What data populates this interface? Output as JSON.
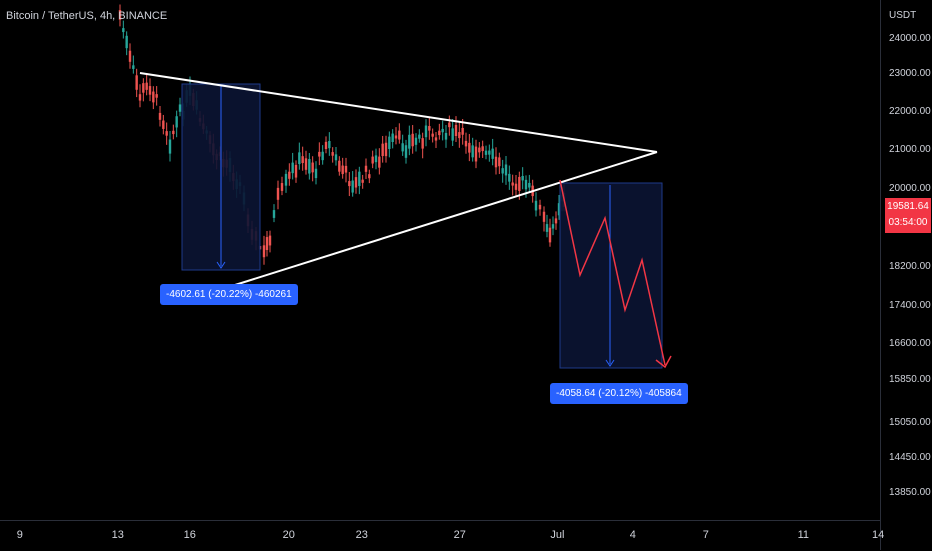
{
  "symbol": {
    "title": "Bitcoin / TetherUS, 4h, BINANCE"
  },
  "price_axis": {
    "currency": "USDT",
    "ticks": [
      {
        "label": "24000.00",
        "value": 24000
      },
      {
        "label": "23000.00",
        "value": 23000
      },
      {
        "label": "22000.00",
        "value": 22000
      },
      {
        "label": "21000.00",
        "value": 21000
      },
      {
        "label": "20000.00",
        "value": 20000
      },
      {
        "label": "18200.00",
        "value": 18200
      },
      {
        "label": "17400.00",
        "value": 17400
      },
      {
        "label": "16600.00",
        "value": 16600
      },
      {
        "label": "15850.00",
        "value": 15850
      },
      {
        "label": "15050.00",
        "value": 15050
      },
      {
        "label": "14450.00",
        "value": 14450
      },
      {
        "label": "13850.00",
        "value": 13850
      }
    ],
    "current_price": "19581.64",
    "countdown": "03:54:00",
    "current_color": "#f23645"
  },
  "time_axis": {
    "ticks": [
      "9",
      "13",
      "16",
      "20",
      "23",
      "27",
      "Jul",
      "4",
      "7",
      "11",
      "14"
    ]
  },
  "measurements": [
    {
      "label": "-4602.61 (-20.22%) -460261"
    },
    {
      "label": "-4058.64 (-20.12%) -405864"
    }
  ],
  "colors": {
    "up": "#26a69a",
    "down": "#ef5350",
    "projection": "#f23645",
    "measure_fill": "#0b1433",
    "measure_line": "#2962ff",
    "trendline": "#ffffff"
  }
}
